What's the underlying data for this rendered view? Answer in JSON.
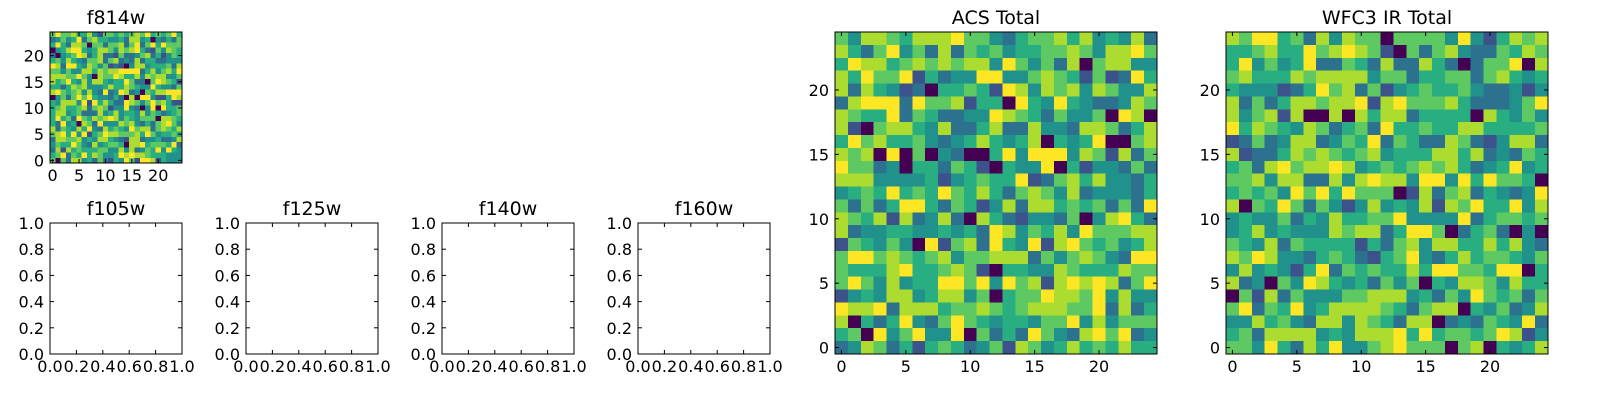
{
  "chart_data": [
    {
      "type": "heatmap",
      "title": "f814w",
      "grid_size": 25,
      "xlim": [
        -0.5,
        24.5
      ],
      "ylim": [
        -0.5,
        24.5
      ],
      "xticks": [
        0,
        5,
        10,
        15,
        20
      ],
      "yticks": [
        0,
        5,
        10,
        15,
        20
      ],
      "colormap": "viridis",
      "grid": false
    },
    {
      "type": "heatmap",
      "title": "ACS Total",
      "grid_size": 25,
      "xlim": [
        -0.5,
        24.5
      ],
      "ylim": [
        -0.5,
        24.5
      ],
      "xticks": [
        0,
        5,
        10,
        15,
        20
      ],
      "yticks": [
        0,
        5,
        10,
        15,
        20
      ],
      "colormap": "viridis",
      "grid": false
    },
    {
      "type": "heatmap",
      "title": "WFC3 IR Total",
      "grid_size": 25,
      "xlim": [
        -0.5,
        24.5
      ],
      "ylim": [
        -0.5,
        24.5
      ],
      "xticks": [
        0,
        5,
        10,
        15,
        20
      ],
      "yticks": [
        0,
        5,
        10,
        15,
        20
      ],
      "colormap": "viridis",
      "grid": false
    },
    {
      "type": "scatter",
      "title": "f105w",
      "xlim": [
        0,
        1
      ],
      "ylim": [
        0,
        1
      ],
      "xticks": [
        "0.0",
        "0.2",
        "0.4",
        "0.6",
        "0.8",
        "1.0"
      ],
      "yticks": [
        "0.0",
        "0.2",
        "0.4",
        "0.6",
        "0.8",
        "1.0"
      ],
      "series": []
    },
    {
      "type": "scatter",
      "title": "f125w",
      "xlim": [
        0,
        1
      ],
      "ylim": [
        0,
        1
      ],
      "xticks": [
        "0.0",
        "0.2",
        "0.4",
        "0.6",
        "0.8",
        "1.0"
      ],
      "yticks": [
        "0.0",
        "0.2",
        "0.4",
        "0.6",
        "0.8",
        "1.0"
      ],
      "series": []
    },
    {
      "type": "scatter",
      "title": "f140w",
      "xlim": [
        0,
        1
      ],
      "ylim": [
        0,
        1
      ],
      "xticks": [
        "0.0",
        "0.2",
        "0.4",
        "0.6",
        "0.8",
        "1.0"
      ],
      "yticks": [
        "0.0",
        "0.2",
        "0.4",
        "0.6",
        "0.8",
        "1.0"
      ],
      "series": []
    },
    {
      "type": "scatter",
      "title": "f160w",
      "xlim": [
        0,
        1
      ],
      "ylim": [
        0,
        1
      ],
      "xticks": [
        "0.0",
        "0.2",
        "0.4",
        "0.6",
        "0.8",
        "1.0"
      ],
      "yticks": [
        "0.0",
        "0.2",
        "0.4",
        "0.6",
        "0.8",
        "1.0"
      ],
      "series": []
    }
  ]
}
